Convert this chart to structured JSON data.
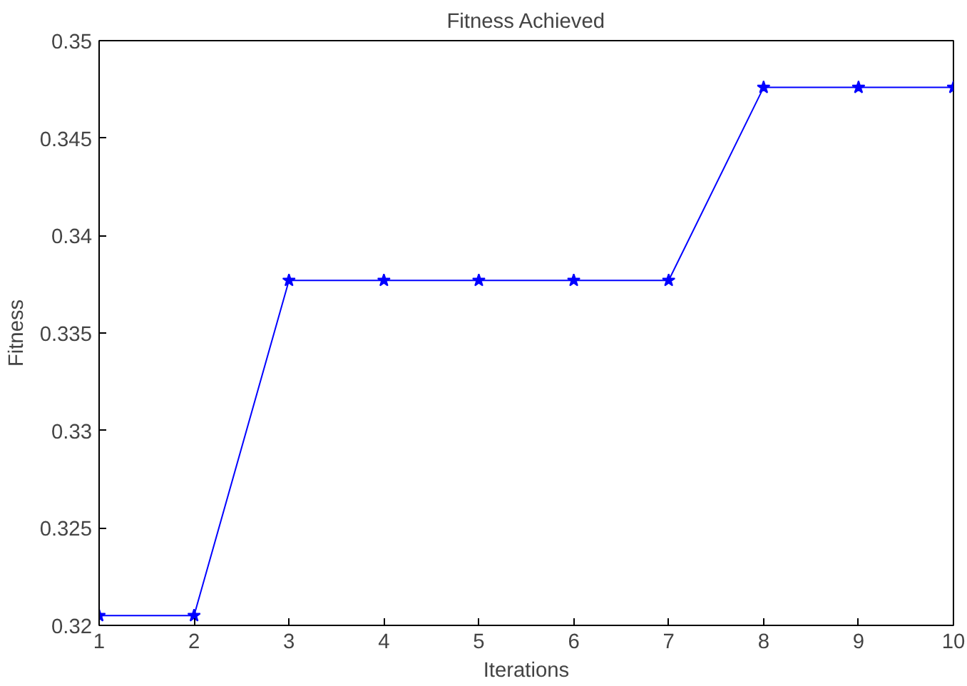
{
  "chart_data": {
    "type": "line",
    "title": "Fitness Achieved",
    "xlabel": "Iterations",
    "ylabel": "Fitness",
    "x": [
      1,
      2,
      3,
      4,
      5,
      6,
      7,
      8,
      9,
      10
    ],
    "series": [
      {
        "color": "#0000ff",
        "values": [
          0.3205,
          0.3205,
          0.3377,
          0.3377,
          0.3377,
          0.3377,
          0.3377,
          0.3476,
          0.3476,
          0.3476
        ]
      }
    ],
    "xlim": [
      1,
      10
    ],
    "ylim": [
      0.32,
      0.35
    ],
    "xticks": [
      1,
      2,
      3,
      4,
      5,
      6,
      7,
      8,
      9,
      10
    ],
    "yticks": [
      0.32,
      0.325,
      0.33,
      0.335,
      0.34,
      0.345,
      0.35
    ],
    "grid": false,
    "marker": "star",
    "line_style": "solid"
  }
}
